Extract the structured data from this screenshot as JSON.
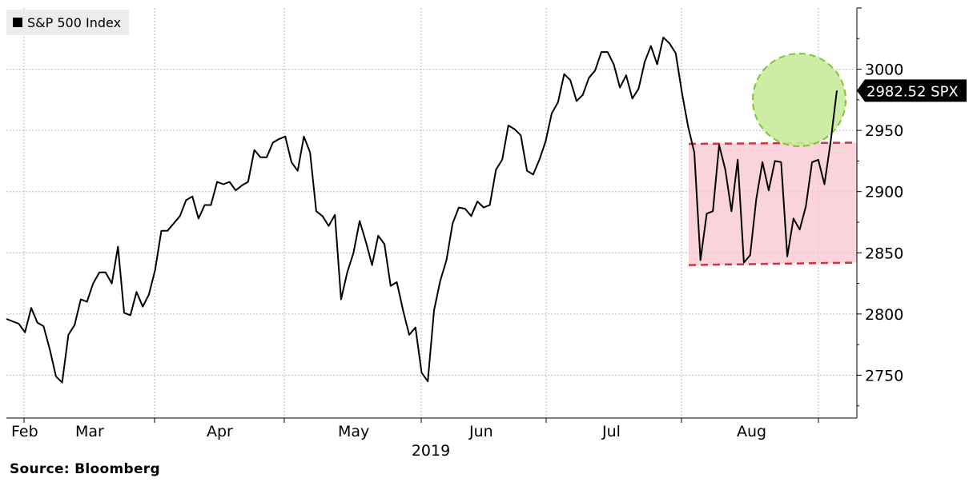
{
  "chart_data": {
    "type": "line",
    "legend": {
      "label": "S&P 500 Index",
      "placement": "top-left",
      "swatch_color": "#000000"
    },
    "year_label": "2019",
    "source": "Source: Bloomberg",
    "y_axis": {
      "side": "right",
      "ylim": [
        2715,
        3050
      ],
      "ticks": [
        2750,
        2800,
        2850,
        2900,
        2950,
        3000
      ]
    },
    "x_axis": {
      "months": [
        "Feb",
        "Mar",
        "Apr",
        "May",
        "Jun",
        "Jul",
        "Aug"
      ]
    },
    "grid": true,
    "last_value_label": "2982.52 SPX",
    "series": [
      {
        "color": "#000000",
        "values": [
          2796,
          2794,
          2792,
          2785,
          2805,
          2793,
          2790,
          2771,
          2749,
          2744,
          2783,
          2791,
          2812,
          2810,
          2825,
          2834,
          2834,
          2825,
          2855,
          2801,
          2799,
          2818,
          2806,
          2816,
          2836,
          2868,
          2868,
          2874,
          2880,
          2893,
          2896,
          2878,
          2889,
          2889,
          2908,
          2906,
          2908,
          2901,
          2905,
          2908,
          2934,
          2928,
          2928,
          2940,
          2943,
          2945,
          2924,
          2917,
          2945,
          2932,
          2884,
          2880,
          2872,
          2881,
          2812,
          2834,
          2850,
          2876,
          2859,
          2840,
          2864,
          2857,
          2823,
          2826,
          2803,
          2783,
          2789,
          2752,
          2745,
          2803,
          2827,
          2844,
          2874,
          2887,
          2886,
          2880,
          2892,
          2887,
          2889,
          2918,
          2926,
          2954,
          2951,
          2946,
          2917,
          2914,
          2926,
          2941,
          2964,
          2973,
          2996,
          2991,
          2974,
          2979,
          2993,
          2999,
          3014,
          3014,
          3004,
          2985,
          2995,
          2976,
          2984,
          3006,
          3019,
          3004,
          3026,
          3021,
          3013,
          2981,
          2953,
          2932,
          2844,
          2882,
          2884,
          2938,
          2918,
          2884,
          2926,
          2842,
          2848,
          2894,
          2924,
          2901,
          2925,
          2924,
          2847,
          2878,
          2869,
          2888,
          2924,
          2926,
          2906,
          2941,
          2982.52
        ]
      }
    ],
    "annotations": [
      {
        "type": "band",
        "label": "",
        "y_low_start": 2840,
        "y_low_end": 2842,
        "y_high_start": 2939,
        "y_high_end": 2940,
        "fill": "#f9c5cf",
        "line_color": "#d6303e"
      },
      {
        "type": "circle",
        "label": "",
        "fill": "#c8eb9a",
        "line_color": "#7fc33a"
      }
    ]
  }
}
